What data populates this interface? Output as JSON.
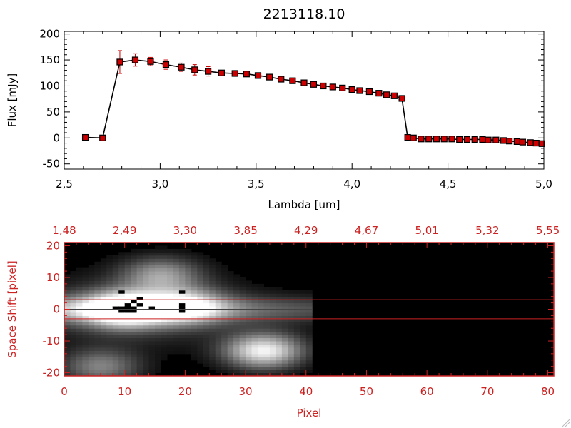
{
  "chart_data": [
    {
      "type": "line",
      "title": "2213118.10",
      "xlabel": "Lambda [um]",
      "ylabel": "Flux [mJy]",
      "xlim": [
        2.5,
        5.0
      ],
      "ylim": [
        -60,
        205
      ],
      "x_tick_labels": [
        "2.5",
        "3.0",
        "3.5",
        "4.0",
        "4.5",
        "5.0"
      ],
      "y_tick_labels": [
        "-50",
        "0",
        "50",
        "100",
        "150",
        "200"
      ],
      "grid": false,
      "line_color": "#000000",
      "marker_color": "#cc0000",
      "errorbar_color": "#cc0000",
      "series": [
        {
          "x": [
            2.61,
            2.7,
            2.79,
            2.87,
            2.95,
            3.03,
            3.11,
            3.18,
            3.25,
            3.32,
            3.39,
            3.45,
            3.51,
            3.57,
            3.63,
            3.69,
            3.75,
            3.8,
            3.85,
            3.9,
            3.95,
            4.0,
            4.04,
            4.09,
            4.14,
            4.18,
            4.22,
            4.26,
            4.29,
            4.32,
            4.36,
            4.4,
            4.44,
            4.48,
            4.52,
            4.56,
            4.6,
            4.64,
            4.68,
            4.71,
            4.75,
            4.79,
            4.82,
            4.86,
            4.89,
            4.93,
            4.96,
            4.99
          ],
          "y": [
            1,
            0,
            146,
            150,
            147,
            141,
            136,
            131,
            128,
            125,
            124,
            123,
            120,
            117,
            113,
            110,
            106,
            103,
            100,
            98,
            96,
            93,
            91,
            89,
            86,
            83,
            81,
            76,
            1,
            0,
            -2,
            -2,
            -2,
            -2,
            -2,
            -3,
            -3,
            -3,
            -3,
            -4,
            -4,
            -5,
            -6,
            -7,
            -8,
            -9,
            -10,
            -11
          ],
          "yerr": [
            3,
            3,
            22,
            12,
            8,
            9,
            8,
            10,
            9,
            5,
            4,
            3,
            3,
            3,
            3,
            3,
            3,
            3,
            3,
            3,
            3,
            3,
            3,
            3,
            3,
            3,
            3,
            4,
            3,
            3,
            3,
            3,
            3,
            3,
            3,
            3,
            3,
            3,
            3,
            3,
            3,
            3,
            3,
            3,
            3,
            3,
            3,
            3
          ]
        }
      ]
    },
    {
      "type": "heatmap",
      "xlabel": "Pixel",
      "ylabel": "Space Shift [pixel]",
      "xlim": [
        0,
        81
      ],
      "ylim": [
        -21,
        21
      ],
      "x_tick_labels": [
        "0",
        "10",
        "20",
        "30",
        "40",
        "50",
        "60",
        "70",
        "80"
      ],
      "y_tick_labels": [
        "-20",
        "-10",
        "0",
        "10",
        "20"
      ],
      "top_axis_tick_labels": [
        "1.48",
        "2.49",
        "3.30",
        "3.85",
        "4.29",
        "4.67",
        "5.01",
        "5.32",
        "5.55"
      ],
      "horizontal_lines_y": [
        3,
        -3
      ],
      "data_extent_x": 41,
      "axis_color": "#cc2222",
      "colormap": "grayscale",
      "blobs": [
        {
          "x": 10,
          "y": 0,
          "peak": 1.0
        },
        {
          "x": 20,
          "y": 1,
          "peak": 0.7
        },
        {
          "x": 33,
          "y": -13,
          "peak": 0.95
        },
        {
          "x": 16,
          "y": 11,
          "peak": 0.55
        },
        {
          "x": 6,
          "y": -18,
          "peak": 0.5
        }
      ],
      "masked_pixels": [
        [
          9,
          0
        ],
        [
          10,
          0
        ],
        [
          11,
          0
        ],
        [
          10,
          -1
        ],
        [
          11,
          -1
        ],
        [
          12,
          1
        ],
        [
          11,
          2
        ],
        [
          12,
          3
        ],
        [
          8,
          0
        ],
        [
          10,
          1
        ],
        [
          9,
          -1
        ],
        [
          14,
          0
        ],
        [
          19,
          0
        ],
        [
          19,
          1
        ],
        [
          19,
          -1
        ],
        [
          19,
          5
        ],
        [
          9,
          5
        ]
      ]
    }
  ]
}
